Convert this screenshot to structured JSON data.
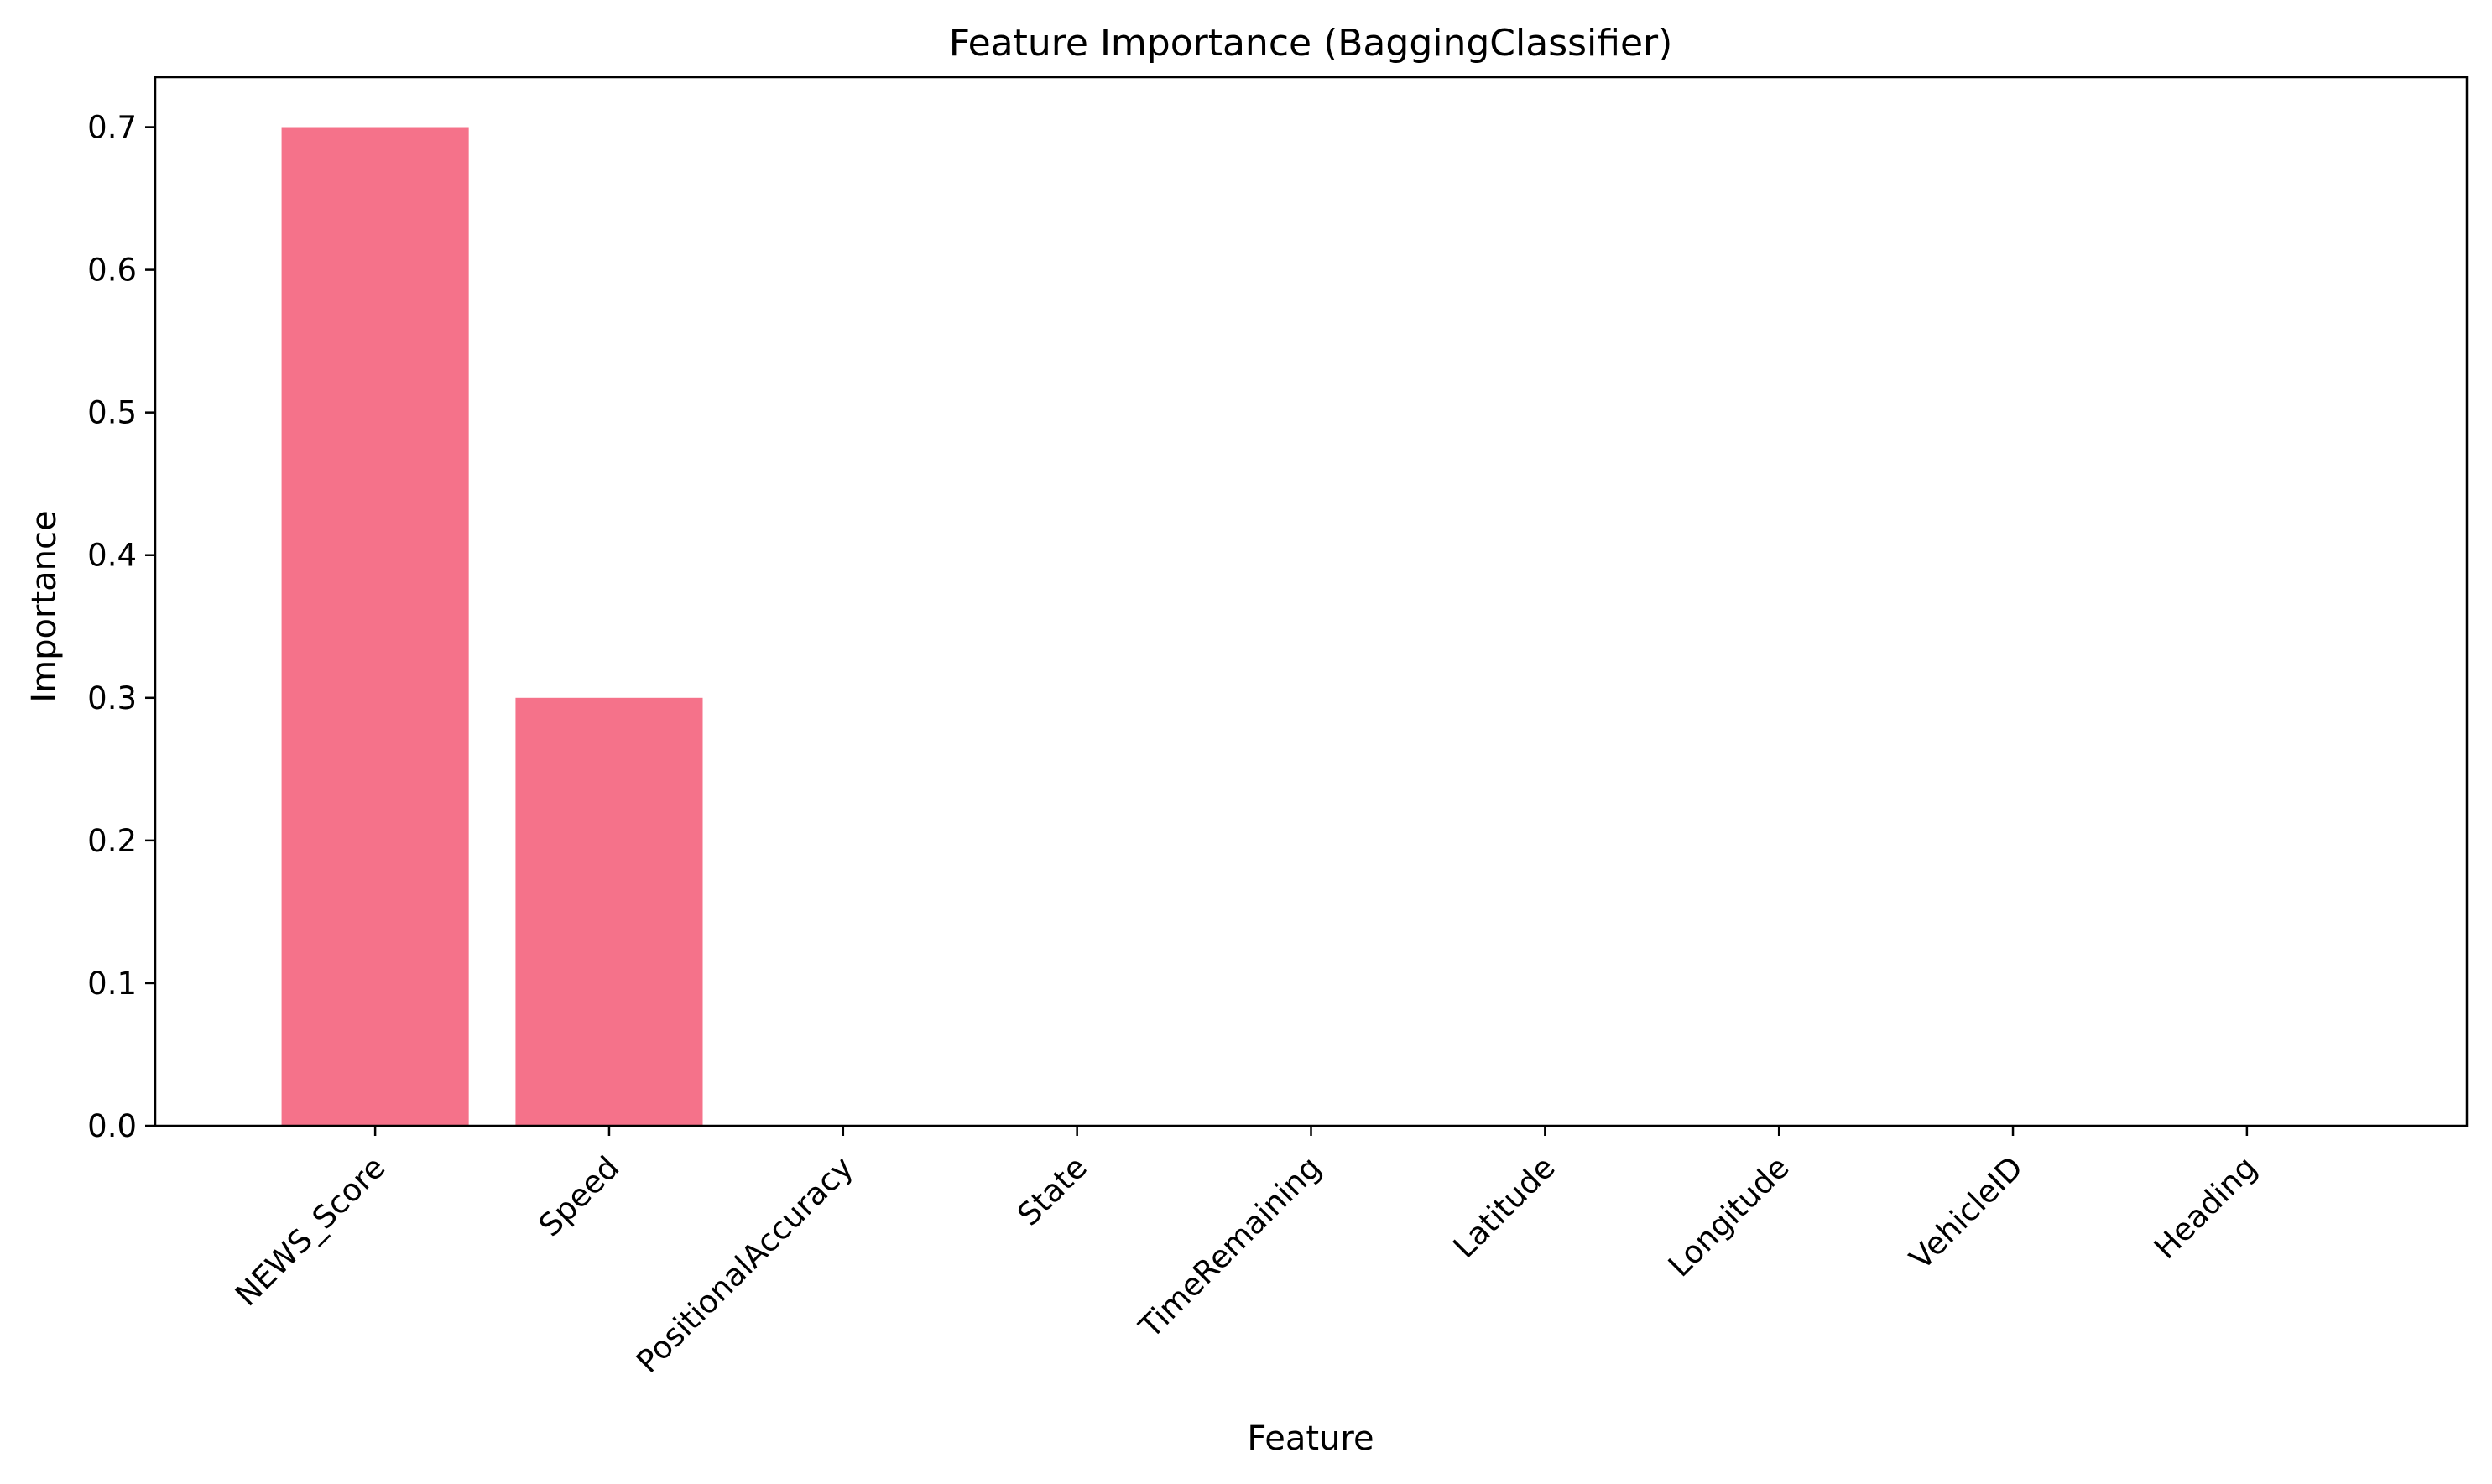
{
  "chart_data": {
    "type": "bar",
    "title": "Feature Importance (BaggingClassifier)",
    "xlabel": "Feature",
    "ylabel": "Importance",
    "categories": [
      "NEWS_Score",
      "Speed",
      "PositionalAccuracy",
      "State",
      "TimeRemaining",
      "Latitude",
      "Longitude",
      "VehicleID",
      "Heading"
    ],
    "values": [
      0.7,
      0.3,
      0.0,
      0.0,
      0.0,
      0.0,
      0.0,
      0.0,
      0.0
    ],
    "ylim": [
      0,
      0.735
    ],
    "yticks": [
      0.0,
      0.1,
      0.2,
      0.3,
      0.4,
      0.5,
      0.6,
      0.7
    ],
    "ytick_labels": [
      "0.0",
      "0.1",
      "0.2",
      "0.3",
      "0.4",
      "0.5",
      "0.6",
      "0.7"
    ],
    "x_tick_rotation_deg": -45,
    "bar_color": "#f5728a",
    "grid": false,
    "legend": "none"
  }
}
